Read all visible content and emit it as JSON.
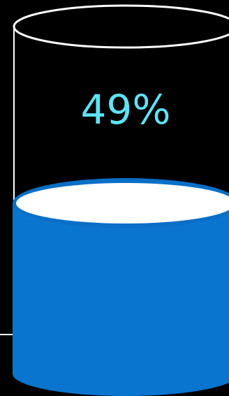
{
  "gauge": {
    "value_label": "49%",
    "fill_fraction": 0.49,
    "colors": {
      "background": "#000000",
      "outline": "#ffffff",
      "liquid": "#0a75cf",
      "liquid_edge": "#0a6fc6",
      "text": "#5ee3f4"
    }
  }
}
